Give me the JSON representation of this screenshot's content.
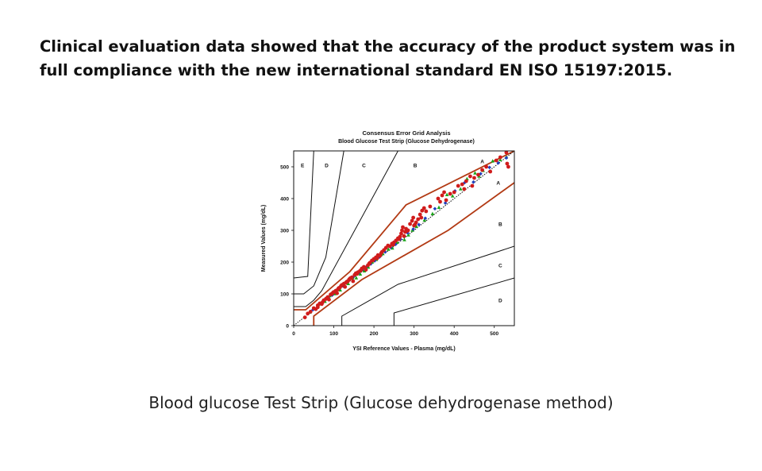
{
  "headline": "Clinical evaluation data showed that the accuracy of the product system was in full compliance with the new international standard EN ISO 15197:2015.",
  "caption": "Blood glucose Test Strip (Glucose dehydrogenase method)",
  "colors": {
    "zone_a_boundary": "#b23a14",
    "zone_line": "#111111",
    "series": [
      "#d01c1c",
      "#1aa51a",
      "#1f3fbf"
    ]
  },
  "chart_data": {
    "type": "scatter",
    "title": "Consensus Error Grid Analysis",
    "subtitle": "Blood Glucose Test Strip (Glucose Dehydrogenase)",
    "xlabel": "YSI Reference Values - Plasma (mg/dL)",
    "ylabel": "Measured Values (mg/dL)",
    "xlim": [
      0,
      550
    ],
    "ylim": [
      0,
      550
    ],
    "xticks": [
      0,
      100,
      200,
      300,
      400,
      500
    ],
    "yticks": [
      0,
      100,
      200,
      300,
      400,
      500
    ],
    "grid": false,
    "diagonal": "dotted line of identity",
    "zone_labels": [
      {
        "label": "E",
        "x": 22,
        "y": 505
      },
      {
        "label": "D",
        "x": 82,
        "y": 505
      },
      {
        "label": "C",
        "x": 175,
        "y": 505
      },
      {
        "label": "B",
        "x": 303,
        "y": 505
      },
      {
        "label": "A",
        "x": 470,
        "y": 518
      },
      {
        "label": "A",
        "x": 510,
        "y": 450
      },
      {
        "label": "B",
        "x": 515,
        "y": 320
      },
      {
        "label": "C",
        "x": 515,
        "y": 190
      },
      {
        "label": "D",
        "x": 515,
        "y": 80
      }
    ],
    "zone_boundaries": {
      "A": [
        [
          [
            0,
            50
          ],
          [
            30,
            50
          ],
          [
            140,
            170
          ],
          [
            280,
            380
          ],
          [
            550,
            550
          ]
        ],
        [
          [
            50,
            0
          ],
          [
            50,
            30
          ],
          [
            170,
            145
          ],
          [
            385,
            300
          ],
          [
            550,
            450
          ]
        ]
      ],
      "B": [
        [
          [
            0,
            60
          ],
          [
            30,
            60
          ],
          [
            50,
            80
          ],
          [
            70,
            110
          ],
          [
            260,
            550
          ]
        ],
        [
          [
            120,
            0
          ],
          [
            120,
            30
          ],
          [
            260,
            130
          ],
          [
            550,
            250
          ]
        ]
      ],
      "C": [
        [
          [
            0,
            100
          ],
          [
            25,
            100
          ],
          [
            50,
            125
          ],
          [
            80,
            215
          ],
          [
            125,
            550
          ]
        ],
        [
          [
            250,
            0
          ],
          [
            250,
            40
          ],
          [
            550,
            150
          ]
        ]
      ],
      "D": [
        [
          [
            0,
            150
          ],
          [
            35,
            155
          ],
          [
            50,
            550
          ]
        ]
      ]
    },
    "series": [
      {
        "values": [
          [
            28,
            26
          ],
          [
            35,
            38
          ],
          [
            42,
            44
          ],
          [
            50,
            55
          ],
          [
            55,
            52
          ],
          [
            60,
            64
          ],
          [
            65,
            70
          ],
          [
            70,
            68
          ],
          [
            75,
            80
          ],
          [
            80,
            84
          ],
          [
            85,
            90
          ],
          [
            88,
            82
          ],
          [
            92,
            98
          ],
          [
            95,
            100
          ],
          [
            100,
            106
          ],
          [
            105,
            110
          ],
          [
            108,
            102
          ],
          [
            112,
            118
          ],
          [
            115,
            120
          ],
          [
            118,
            125
          ],
          [
            120,
            128
          ],
          [
            125,
            132
          ],
          [
            128,
            122
          ],
          [
            132,
            138
          ],
          [
            135,
            140
          ],
          [
            138,
            145
          ],
          [
            140,
            148
          ],
          [
            145,
            152
          ],
          [
            148,
            140
          ],
          [
            152,
            160
          ],
          [
            155,
            165
          ],
          [
            160,
            168
          ],
          [
            165,
            172
          ],
          [
            170,
            180
          ],
          [
            175,
            185
          ],
          [
            180,
            176
          ],
          [
            185,
            190
          ],
          [
            190,
            198
          ],
          [
            195,
            205
          ],
          [
            200,
            210
          ],
          [
            205,
            215
          ],
          [
            210,
            222
          ],
          [
            215,
            220
          ],
          [
            220,
            232
          ],
          [
            225,
            238
          ],
          [
            230,
            245
          ],
          [
            235,
            252
          ],
          [
            240,
            250
          ],
          [
            245,
            258
          ],
          [
            250,
            262
          ],
          [
            255,
            268
          ],
          [
            260,
            275
          ],
          [
            265,
            280
          ],
          [
            268,
            290
          ],
          [
            270,
            300
          ],
          [
            272,
            310
          ],
          [
            275,
            282
          ],
          [
            278,
            295
          ],
          [
            280,
            305
          ],
          [
            285,
            300
          ],
          [
            290,
            320
          ],
          [
            295,
            330
          ],
          [
            298,
            340
          ],
          [
            300,
            315
          ],
          [
            305,
            325
          ],
          [
            310,
            335
          ],
          [
            315,
            350
          ],
          [
            320,
            362
          ],
          [
            325,
            370
          ],
          [
            330,
            360
          ],
          [
            340,
            375
          ],
          [
            360,
            400
          ],
          [
            365,
            390
          ],
          [
            370,
            410
          ],
          [
            375,
            420
          ],
          [
            380,
            395
          ],
          [
            390,
            415
          ],
          [
            400,
            420
          ],
          [
            410,
            440
          ],
          [
            420,
            445
          ],
          [
            425,
            430
          ],
          [
            430,
            455
          ],
          [
            440,
            470
          ],
          [
            445,
            440
          ],
          [
            450,
            465
          ],
          [
            460,
            475
          ],
          [
            470,
            490
          ],
          [
            480,
            500
          ],
          [
            490,
            485
          ],
          [
            505,
            520
          ],
          [
            515,
            530
          ],
          [
            530,
            545
          ],
          [
            532,
            510
          ],
          [
            535,
            500
          ],
          [
            60,
            58
          ],
          [
            72,
            74
          ],
          [
            82,
            86
          ],
          [
            98,
            104
          ],
          [
            110,
            114
          ],
          [
            130,
            135
          ],
          [
            142,
            150
          ],
          [
            158,
            163
          ],
          [
            168,
            175
          ],
          [
            178,
            182
          ],
          [
            188,
            195
          ],
          [
            198,
            206
          ],
          [
            208,
            212
          ],
          [
            218,
            228
          ],
          [
            248,
            255
          ],
          [
            262,
            272
          ],
          [
            282,
            298
          ],
          [
            302,
            318
          ],
          [
            318,
            340
          ]
        ]
      },
      {
        "values": [
          [
            40,
            42
          ],
          [
            62,
            66
          ],
          [
            78,
            76
          ],
          [
            90,
            94
          ],
          [
            102,
            100
          ],
          [
            116,
            112
          ],
          [
            122,
            126
          ],
          [
            136,
            132
          ],
          [
            146,
            150
          ],
          [
            156,
            150
          ],
          [
            166,
            162
          ],
          [
            176,
            172
          ],
          [
            186,
            184
          ],
          [
            196,
            200
          ],
          [
            206,
            208
          ],
          [
            222,
            226
          ],
          [
            236,
            240
          ],
          [
            246,
            244
          ],
          [
            258,
            262
          ],
          [
            276,
            270
          ],
          [
            286,
            285
          ],
          [
            296,
            300
          ],
          [
            306,
            312
          ],
          [
            326,
            332
          ],
          [
            346,
            352
          ],
          [
            362,
            372
          ],
          [
            382,
            412
          ],
          [
            396,
            408
          ],
          [
            416,
            430
          ],
          [
            432,
            462
          ],
          [
            452,
            480
          ],
          [
            472,
            488
          ],
          [
            496,
            518
          ],
          [
            515,
            522
          ],
          [
            530,
            530
          ],
          [
            462,
            470
          ]
        ]
      },
      {
        "values": [
          [
            48,
            50
          ],
          [
            68,
            70
          ],
          [
            86,
            88
          ],
          [
            96,
            96
          ],
          [
            114,
            118
          ],
          [
            124,
            124
          ],
          [
            134,
            138
          ],
          [
            150,
            156
          ],
          [
            162,
            166
          ],
          [
            172,
            178
          ],
          [
            182,
            186
          ],
          [
            192,
            194
          ],
          [
            202,
            204
          ],
          [
            214,
            216
          ],
          [
            228,
            232
          ],
          [
            242,
            246
          ],
          [
            254,
            256
          ],
          [
            266,
            272
          ],
          [
            284,
            292
          ],
          [
            298,
            304
          ],
          [
            312,
            318
          ],
          [
            328,
            338
          ],
          [
            352,
            368
          ],
          [
            378,
            386
          ],
          [
            402,
            424
          ],
          [
            426,
            450
          ],
          [
            448,
            452
          ],
          [
            466,
            478
          ],
          [
            488,
            498
          ],
          [
            510,
            512
          ],
          [
            530,
            528
          ]
        ]
      }
    ]
  }
}
